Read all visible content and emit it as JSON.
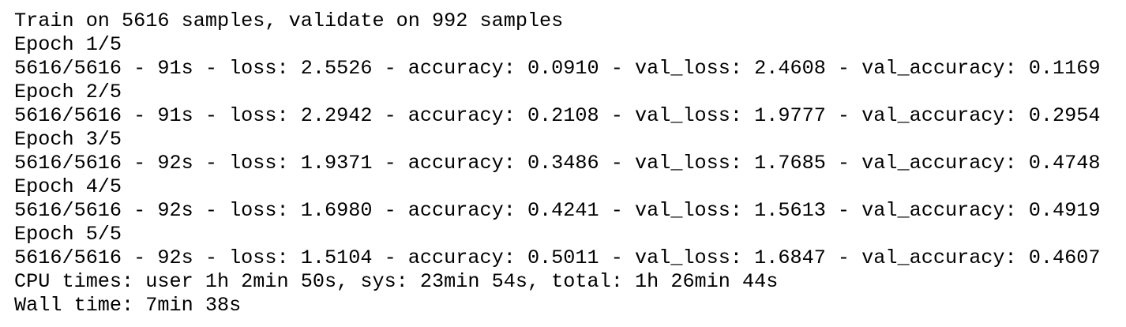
{
  "lines": [
    "Train on 5616 samples, validate on 992 samples",
    "Epoch 1/5",
    "5616/5616 - 91s - loss: 2.5526 - accuracy: 0.0910 - val_loss: 2.4608 - val_accuracy: 0.1169",
    "Epoch 2/5",
    "5616/5616 - 91s - loss: 2.2942 - accuracy: 0.2108 - val_loss: 1.9777 - val_accuracy: 0.2954",
    "Epoch 3/5",
    "5616/5616 - 92s - loss: 1.9371 - accuracy: 0.3486 - val_loss: 1.7685 - val_accuracy: 0.4748",
    "Epoch 4/5",
    "5616/5616 - 92s - loss: 1.6980 - accuracy: 0.4241 - val_loss: 1.5613 - val_accuracy: 0.4919",
    "Epoch 5/5",
    "5616/5616 - 92s - loss: 1.5104 - accuracy: 0.5011 - val_loss: 1.6847 - val_accuracy: 0.4607",
    "CPU times: user 1h 2min 50s, sys: 23min 54s, total: 1h 26min 44s",
    "Wall time: 7min 38s"
  ]
}
